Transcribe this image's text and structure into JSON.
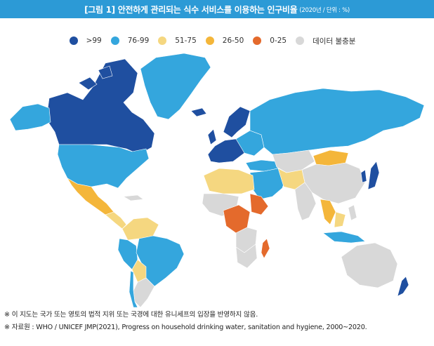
{
  "title": {
    "text": "[그림 1] 안전하게 관리되는 식수 서비스를 이용하는 인구비율",
    "unit": "(2020년 / 단위 : %)"
  },
  "legend": [
    {
      "label": ">99",
      "color": "#1f4fa0"
    },
    {
      "label": "76-99",
      "color": "#34a6dd"
    },
    {
      "label": "51-75",
      "color": "#f5d780"
    },
    {
      "label": "26-50",
      "color": "#f4b63a"
    },
    {
      "label": "0-25",
      "color": "#e46a2c"
    },
    {
      "label": "데이터 불충분",
      "color": "#d8d8d8"
    }
  ],
  "notes": {
    "line1": "※ 이 지도는 국가 또는 영토의 법적 지위 또는 국경에 대한 유니세프의 입장을 반영하지 않음.",
    "line2": "※ 자료원 : WHO / UNICEF JMP(2021), Progress on household drinking water, sanitation and hygiene, 2000~2020."
  }
}
